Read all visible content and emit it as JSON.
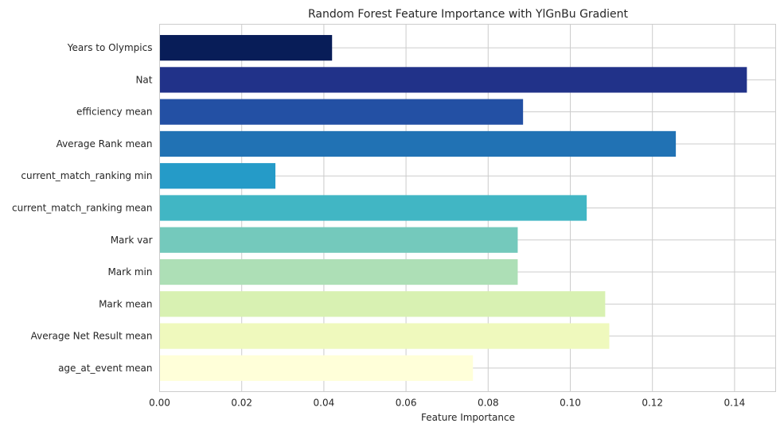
{
  "chart_data": {
    "type": "bar",
    "orientation": "horizontal",
    "title": "Random Forest Feature Importance with YlGnBu Gradient",
    "xlabel": "Feature Importance",
    "ylabel": "",
    "xlim": [
      0,
      0.15
    ],
    "xticks": [
      "0.00",
      "0.02",
      "0.04",
      "0.06",
      "0.08",
      "0.10",
      "0.12",
      "0.14"
    ],
    "grid": true,
    "categories": [
      "Years to Olympics",
      "Nat",
      "efficiency mean",
      "Average Rank mean",
      "current_match_ranking min",
      "current_match_ranking mean",
      "Mark var",
      "Mark min",
      "Mark mean",
      "Average Net Result mean",
      "age_at_event mean"
    ],
    "values": [
      0.042,
      0.143,
      0.0885,
      0.1257,
      0.0282,
      0.104,
      0.0872,
      0.0872,
      0.1085,
      0.1095,
      0.0763
    ],
    "colors": [
      "#081d58",
      "#213289",
      "#2350a4",
      "#2172b4",
      "#259bc8",
      "#41b6c4",
      "#74c9bc",
      "#addfb6",
      "#d8f1b2",
      "#eff9bd",
      "#ffffd9"
    ]
  }
}
